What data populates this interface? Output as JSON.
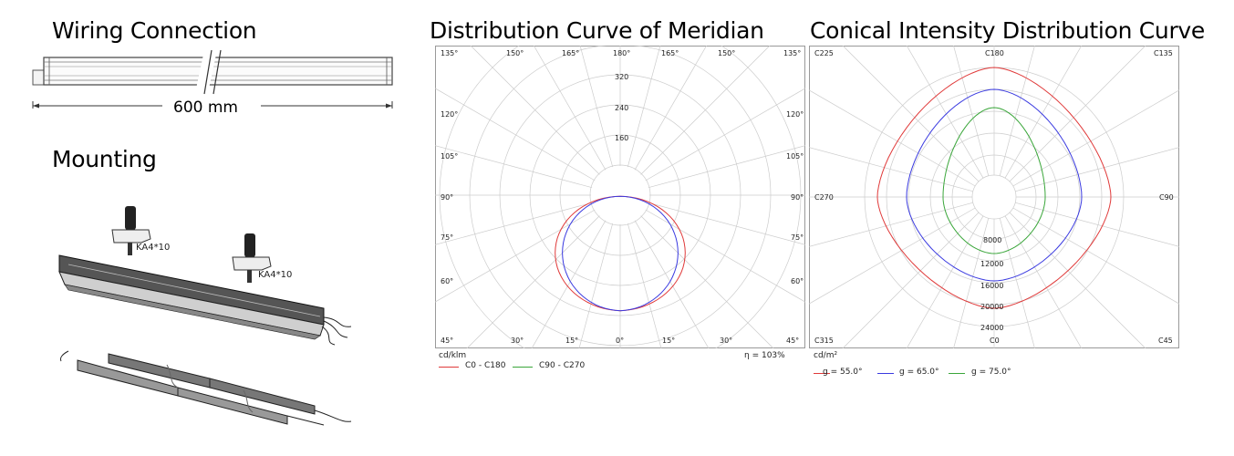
{
  "wiring": {
    "title": "Wiring Connection",
    "length_label": "600 mm"
  },
  "mounting": {
    "title": "Mounting",
    "screw_label_1": "KA4*10",
    "screw_label_2": "KA4*10"
  },
  "meridian": {
    "title": "Distribution Curve of Meridian",
    "top_angles": [
      "135°",
      "150°",
      "165°",
      "180°",
      "165°",
      "150°",
      "135°"
    ],
    "left_angles": [
      "120°",
      "105°",
      "90°",
      "75°",
      "60°"
    ],
    "right_angles": [
      "120°",
      "105°",
      "90°",
      "75°",
      "60°"
    ],
    "bottom_angles": [
      "45°",
      "30°",
      "15°",
      "0°",
      "15°",
      "30°",
      "45°"
    ],
    "radial_labels": [
      "320",
      "240",
      "160"
    ],
    "unit": "cd/klm",
    "efficiency": "η = 103%",
    "legend": [
      {
        "label": "C0 - C180",
        "color": "#e03a3a"
      },
      {
        "label": "C90 - C270",
        "color": "#3aa63a"
      }
    ]
  },
  "conical": {
    "title": "Conical Intensity Distribution Curve",
    "corner_labels": {
      "top_left": "C225",
      "top": "C180",
      "top_right": "C135",
      "left": "C270",
      "right": "C90",
      "bottom_left": "C315",
      "bottom": "C0",
      "bottom_right": "C45"
    },
    "radial_labels": [
      "8000",
      "12000",
      "16000",
      "20000",
      "24000"
    ],
    "unit": "cd/m²",
    "legend": [
      {
        "label": "g = 55.0°",
        "color": "#e03a3a"
      },
      {
        "label": "g = 65.0°",
        "color": "#3a3ae0"
      },
      {
        "label": "g = 75.0°",
        "color": "#3aa63a"
      }
    ]
  },
  "colors": {
    "red": "#e03a3a",
    "blue": "#3a3ae0",
    "green": "#3aa63a",
    "grid": "#cccccc",
    "frame": "#999999"
  }
}
